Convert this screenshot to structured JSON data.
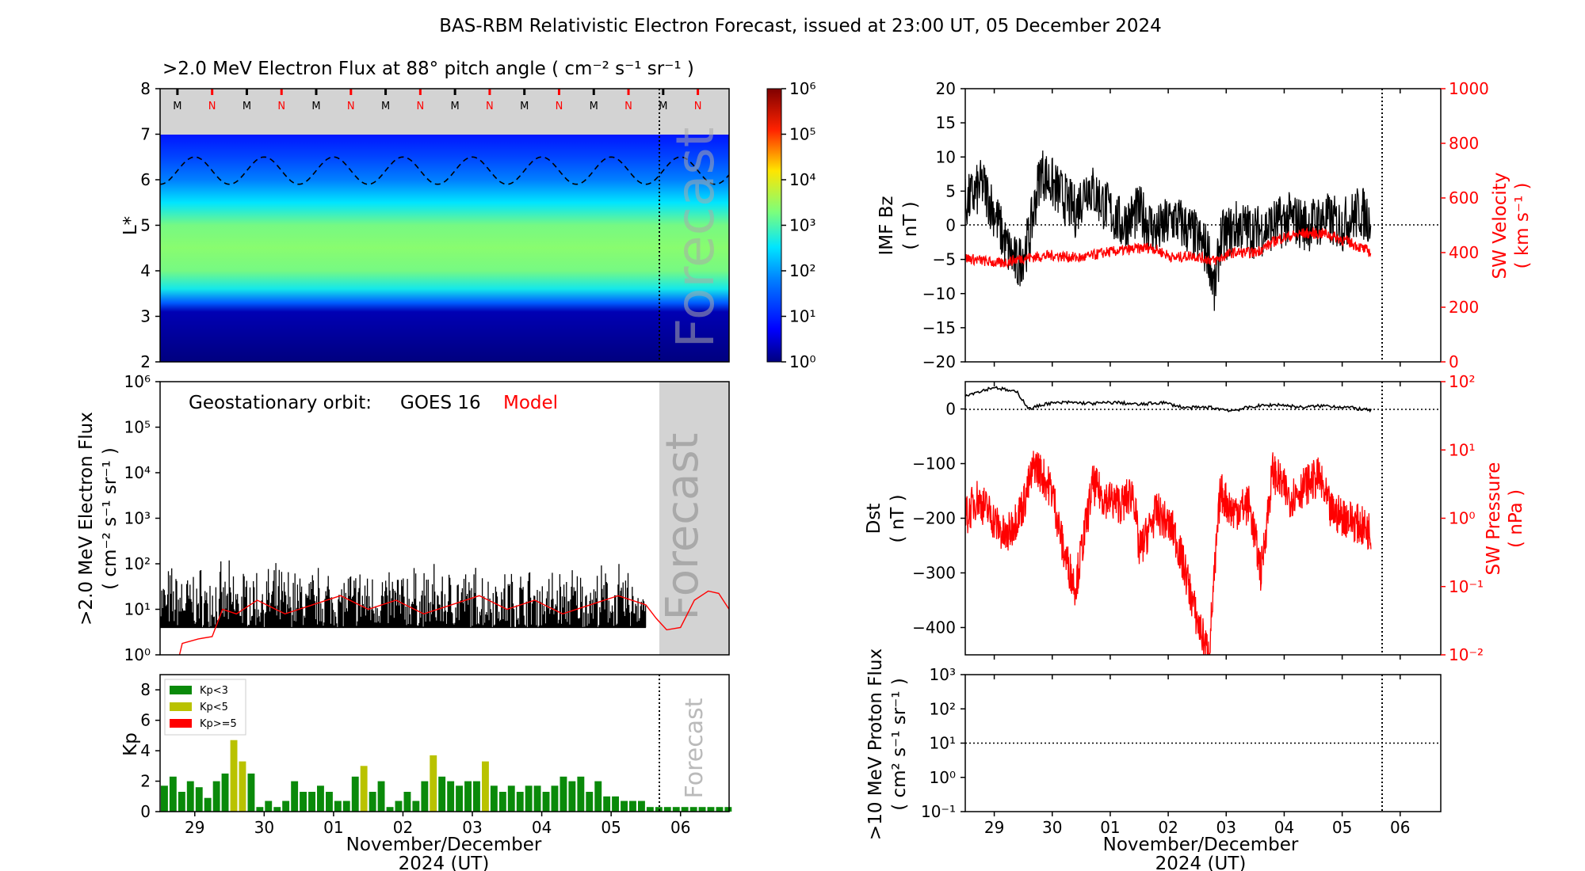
{
  "figure": {
    "title": "BAS-RBM Relativistic Electron Forecast, issued at 23:00 UT, 05 December 2024",
    "xlabel_line1": "November/December",
    "xlabel_line2": "2024 (UT)",
    "day_ticks": [
      "29",
      "30",
      "01",
      "02",
      "03",
      "04",
      "05",
      "06"
    ],
    "forecast_label": "Forecast"
  },
  "colors": {
    "kp_low": "#0a8a0a",
    "kp_mid": "#b9c200",
    "kp_high": "#ff0000",
    "model": "#ff0000",
    "forecast_bg": "#d3d3d3",
    "forecast_text": "#a9a9a9"
  },
  "chart_data": [
    {
      "id": "flux_map",
      "type": "heatmap",
      "title": ">2.0 MeV Electron Flux at 88° pitch angle ( cm⁻² s⁻¹ sr⁻¹ )",
      "ylabel": "L*",
      "ylim": [
        2,
        8
      ],
      "yticks": [
        "2",
        "3",
        "4",
        "5",
        "6",
        "7",
        "8"
      ],
      "x_range_days": [
        0,
        8.2
      ],
      "forecast_start_day": 7.0,
      "orbit_markers": [
        "M",
        "N",
        "M",
        "N",
        "M",
        "N",
        "M",
        "N",
        "M",
        "N",
        "M",
        "N",
        "M",
        "N",
        "M",
        "N"
      ],
      "colorbar_ticks": [
        "10⁰",
        "10¹",
        "10²",
        "10³",
        "10⁴",
        "10⁵",
        "10⁶"
      ],
      "colorbar_range_log10": [
        0,
        6
      ],
      "profile": [
        {
          "L": 2.0,
          "log10_flux": 0.0
        },
        {
          "L": 3.1,
          "log10_flux": 0.3
        },
        {
          "L": 3.3,
          "log10_flux": 1.5
        },
        {
          "L": 3.6,
          "log10_flux": 2.6
        },
        {
          "L": 4.0,
          "log10_flux": 3.1
        },
        {
          "L": 4.5,
          "log10_flux": 3.2
        },
        {
          "L": 5.0,
          "log10_flux": 3.1
        },
        {
          "L": 5.5,
          "log10_flux": 2.5
        },
        {
          "L": 6.0,
          "log10_flux": 1.8
        },
        {
          "L": 6.5,
          "log10_flux": 1.3
        },
        {
          "L": 7.0,
          "log10_flux": 0.9
        }
      ],
      "geo_L_mean": 6.2,
      "geo_L_amplitude": 0.3
    },
    {
      "id": "geo_flux",
      "type": "line",
      "legend_obs_prefix": "Geostationary orbit:",
      "legend_obs": "GOES 16",
      "legend_model": "Model",
      "ylabel_line1": ">2.0 MeV Electron Flux",
      "ylabel_line2": "( cm⁻² s⁻¹ sr⁻¹ )",
      "yscale": "log",
      "ylim_log10": [
        0,
        6
      ],
      "yticks": [
        "10⁰",
        "10¹",
        "10²",
        "10³",
        "10⁴",
        "10⁵",
        "10⁶"
      ],
      "obs_floor_log10": 0.6,
      "obs_peak_log10": 2.1,
      "model_log10": [
        [
          0.28,
          0.0
        ],
        [
          0.32,
          0.25
        ],
        [
          0.55,
          0.35
        ],
        [
          0.75,
          0.4
        ],
        [
          0.9,
          1.0
        ],
        [
          1.1,
          0.9
        ],
        [
          1.4,
          1.2
        ],
        [
          1.8,
          0.9
        ],
        [
          2.2,
          1.1
        ],
        [
          2.6,
          1.3
        ],
        [
          3.0,
          1.0
        ],
        [
          3.4,
          1.2
        ],
        [
          3.8,
          0.9
        ],
        [
          4.2,
          1.1
        ],
        [
          4.6,
          1.3
        ],
        [
          5.0,
          1.0
        ],
        [
          5.4,
          1.2
        ],
        [
          5.8,
          0.9
        ],
        [
          6.2,
          1.1
        ],
        [
          6.6,
          1.3
        ],
        [
          7.0,
          1.1
        ],
        [
          7.15,
          0.8
        ],
        [
          7.3,
          0.55
        ],
        [
          7.5,
          0.6
        ],
        [
          7.7,
          1.2
        ],
        [
          7.9,
          1.4
        ],
        [
          8.05,
          1.35
        ],
        [
          8.2,
          1.0
        ]
      ]
    },
    {
      "id": "kp",
      "type": "bar",
      "ylabel": "Kp",
      "ylim": [
        0,
        9
      ],
      "yticks": [
        "0",
        "2",
        "4",
        "6",
        "8"
      ],
      "legend": [
        "Kp<3",
        "Kp<5",
        "Kp>=5"
      ],
      "bar_width_days": 0.125,
      "values": [
        1.7,
        2.3,
        1.3,
        2.0,
        1.6,
        0.9,
        2.0,
        2.5,
        4.7,
        3.3,
        2.5,
        0.3,
        0.7,
        0.3,
        0.7,
        2.0,
        1.3,
        1.3,
        1.7,
        1.3,
        0.7,
        0.7,
        2.3,
        3.0,
        1.3,
        2.0,
        0.3,
        0.7,
        1.3,
        0.7,
        2.0,
        3.7,
        2.3,
        2.0,
        1.7,
        2.0,
        2.0,
        3.3,
        1.7,
        1.3,
        1.7,
        1.3,
        1.7,
        1.7,
        1.3,
        1.7,
        2.3,
        2.0,
        2.3,
        1.3,
        2.0,
        1.0,
        1.0,
        0.7,
        0.7,
        0.7,
        0.3,
        0.3,
        0.3,
        0.3,
        0.3,
        0.3,
        0.3,
        0.3,
        0.3,
        0.3
      ]
    },
    {
      "id": "imf_sw",
      "type": "line",
      "ylabel_left_line1": "IMF Bz",
      "ylabel_left_line2": "( nT )",
      "ylabel_right_line1": "SW Velocity",
      "ylabel_right_line2": "( km s⁻¹ )",
      "ylim_left": [
        -20,
        20
      ],
      "yticks_left": [
        "−20",
        "−15",
        "−10",
        "−5",
        "0",
        "5",
        "10",
        "15",
        "20"
      ],
      "ylim_right": [
        0,
        1000
      ],
      "yticks_right": [
        "0",
        "200",
        "400",
        "600",
        "800",
        "1000"
      ],
      "bz": [
        [
          0,
          3
        ],
        [
          0.3,
          6
        ],
        [
          0.5,
          2
        ],
        [
          0.7,
          -3
        ],
        [
          0.9,
          -6
        ],
        [
          1.1,
          -2
        ],
        [
          1.3,
          8
        ],
        [
          1.6,
          5
        ],
        [
          1.9,
          2
        ],
        [
          2.1,
          6
        ],
        [
          2.4,
          3
        ],
        [
          2.7,
          0
        ],
        [
          3.0,
          2
        ],
        [
          3.3,
          -1
        ],
        [
          3.6,
          1
        ],
        [
          3.9,
          -1
        ],
        [
          4.2,
          -4
        ],
        [
          4.3,
          -10
        ],
        [
          4.4,
          -2
        ],
        [
          4.7,
          0
        ],
        [
          5.0,
          -1
        ],
        [
          5.3,
          0
        ],
        [
          5.6,
          1
        ],
        [
          5.9,
          0
        ],
        [
          6.2,
          1
        ],
        [
          6.5,
          0
        ],
        [
          6.8,
          2
        ],
        [
          7.0,
          1
        ]
      ],
      "velocity": [
        [
          0,
          380
        ],
        [
          0.6,
          360
        ],
        [
          1.0,
          380
        ],
        [
          1.5,
          390
        ],
        [
          2.0,
          380
        ],
        [
          2.4,
          400
        ],
        [
          2.8,
          410
        ],
        [
          3.2,
          420
        ],
        [
          3.6,
          380
        ],
        [
          3.9,
          390
        ],
        [
          4.3,
          370
        ],
        [
          4.6,
          400
        ],
        [
          5.0,
          400
        ],
        [
          5.4,
          450
        ],
        [
          5.8,
          470
        ],
        [
          6.2,
          470
        ],
        [
          6.6,
          440
        ],
        [
          7.0,
          400
        ]
      ]
    },
    {
      "id": "dst_pressure",
      "type": "line",
      "ylabel_left_line1": "Dst",
      "ylabel_left_line2": "( nT )",
      "ylabel_right_line1": "SW Pressure",
      "ylabel_right_line2": "( nPa )",
      "ylim_left": [
        -450,
        50
      ],
      "yticks_left": [
        "−400",
        "−300",
        "−200",
        "−100",
        "0"
      ],
      "ylim_right_log10": [
        -2,
        2
      ],
      "yticks_right": [
        "10⁻²",
        "10⁻¹",
        "10⁰",
        "10¹",
        "10²"
      ],
      "dst": [
        [
          0,
          25
        ],
        [
          0.5,
          40
        ],
        [
          0.9,
          30
        ],
        [
          1.1,
          0
        ],
        [
          1.4,
          10
        ],
        [
          1.8,
          12
        ],
        [
          2.2,
          10
        ],
        [
          2.6,
          12
        ],
        [
          3.0,
          8
        ],
        [
          3.4,
          12
        ],
        [
          3.8,
          2
        ],
        [
          4.2,
          3
        ],
        [
          4.6,
          -3
        ],
        [
          5.0,
          5
        ],
        [
          5.4,
          8
        ],
        [
          5.8,
          3
        ],
        [
          6.2,
          6
        ],
        [
          6.6,
          3
        ],
        [
          7.0,
          -3
        ]
      ],
      "pressure_log10": [
        [
          0,
          0.0
        ],
        [
          0.2,
          0.3
        ],
        [
          0.4,
          0.1
        ],
        [
          0.7,
          -0.3
        ],
        [
          1.0,
          0.2
        ],
        [
          1.2,
          0.8
        ],
        [
          1.5,
          0.4
        ],
        [
          1.7,
          -0.5
        ],
        [
          1.9,
          -1.0
        ],
        [
          2.2,
          0.5
        ],
        [
          2.4,
          0.3
        ],
        [
          2.7,
          0.2
        ],
        [
          2.9,
          0.4
        ],
        [
          3.0,
          -0.5
        ],
        [
          3.3,
          0.1
        ],
        [
          3.6,
          -0.2
        ],
        [
          3.8,
          -0.8
        ],
        [
          4.0,
          -1.5
        ],
        [
          4.2,
          -2.0
        ],
        [
          4.4,
          0.4
        ],
        [
          4.6,
          0.1
        ],
        [
          4.9,
          0.2
        ],
        [
          5.1,
          -0.8
        ],
        [
          5.3,
          0.7
        ],
        [
          5.6,
          0.3
        ],
        [
          5.9,
          0.5
        ],
        [
          6.1,
          0.6
        ],
        [
          6.3,
          0.1
        ],
        [
          6.6,
          0.0
        ],
        [
          7.0,
          -0.2
        ]
      ]
    },
    {
      "id": "proton_flux",
      "type": "line",
      "ylabel_line1": ">10 MeV Proton Flux",
      "ylabel_line2": "( cm² s⁻¹ sr⁻¹ )",
      "yscale": "log",
      "ylim_log10": [
        -1,
        3
      ],
      "yticks": [
        "10⁻¹",
        "10⁰",
        "10¹",
        "10²",
        "10³"
      ],
      "threshold": 10
    }
  ]
}
